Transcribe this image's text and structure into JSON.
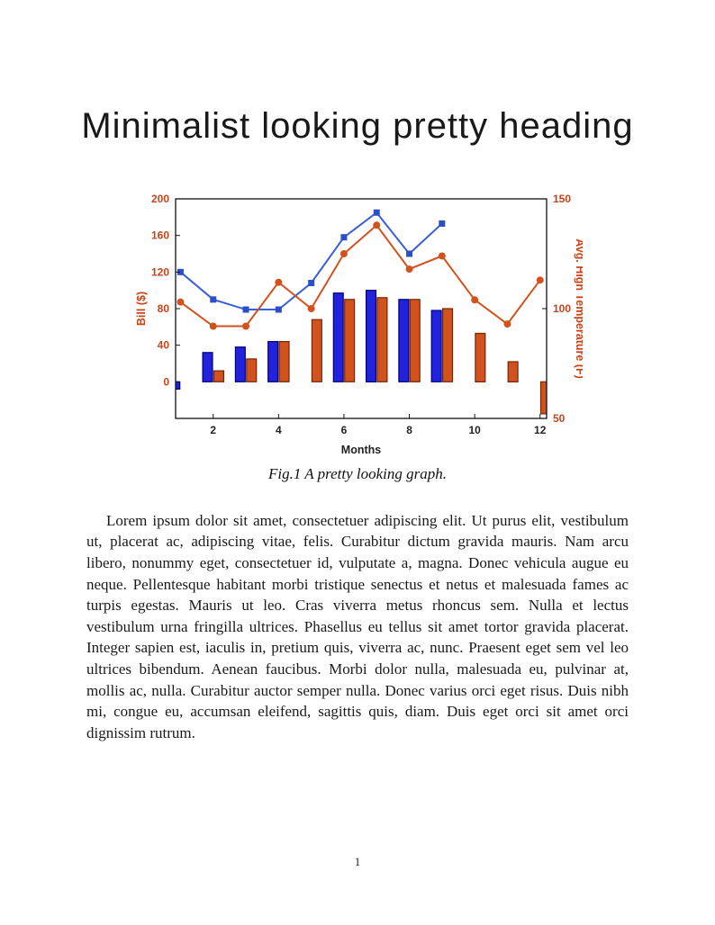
{
  "page": {
    "heading": "Minimalist looking pretty heading",
    "caption": "Fig.1 A pretty looking graph.",
    "body": "Lorem ipsum dolor sit amet, consectetuer adipiscing elit. Ut purus elit, vestibulum ut, placerat ac, adipiscing vitae, felis. Curabitur dictum gravida mauris. Nam arcu libero, nonummy eget, consectetuer id, vulputate a, magna. Donec vehicula augue eu neque. Pellentesque habitant morbi tristique senectus et netus et malesuada fames ac turpis egestas. Mauris ut leo. Cras viverra metus rhoncus sem. Nulla et lectus vestibulum urna fringilla ultrices. Phasellus eu tellus sit amet tortor gravida placerat. Integer sapien est, iaculis in, pretium quis, viverra ac, nunc. Praesent eget sem vel leo ultrices bibendum. Aenean faucibus. Morbi dolor nulla, malesuada eu, pulvinar at, mollis ac, nulla. Curabitur auctor semper nulla. Donec varius orci eget risus. Duis nibh mi, congue eu, accumsan eleifend, sagittis quis, diam. Duis eget orci sit amet orci dignissim rutrum.",
    "page_number": "1"
  },
  "chart_data": {
    "type": "bar+line",
    "x": [
      1,
      2,
      3,
      4,
      5,
      6,
      7,
      8,
      9,
      10,
      11,
      12
    ],
    "xlabel": "Months",
    "x_ticks": [
      2,
      4,
      6,
      8,
      10,
      12
    ],
    "x_tick_color": "#222222",
    "grid": false,
    "legend": "none",
    "left_axis": {
      "label": "Bill ($)",
      "ticks": [
        0,
        40,
        80,
        120,
        160,
        200
      ],
      "range": [
        -40,
        200
      ],
      "color": "#C7441A"
    },
    "right_axis": {
      "label": "Avg. High Temperature (F)",
      "ticks": [
        50,
        100,
        150
      ],
      "range": [
        50,
        150
      ],
      "color": "#C7441A"
    },
    "series": [
      {
        "name": "bill-bars-blue",
        "type": "bar",
        "axis": "left",
        "color": "#2222DD",
        "edge": "#00007A",
        "values": [
          -8,
          32,
          38,
          44,
          0,
          97,
          100,
          90,
          78,
          0,
          0,
          0
        ]
      },
      {
        "name": "bill-bars-orange",
        "type": "bar",
        "axis": "left",
        "color": "#D2521E",
        "edge": "#772605",
        "values": [
          0,
          12,
          25,
          44,
          68,
          90,
          92,
          90,
          80,
          53,
          22,
          -35
        ]
      },
      {
        "name": "bill-line-blue",
        "type": "line",
        "axis": "left",
        "color": "#3A5FD7",
        "marker": "square",
        "marker_color": "#2B4FC8",
        "values": [
          120,
          90,
          79,
          79,
          108,
          158,
          185,
          140,
          173,
          null,
          null,
          null
        ]
      },
      {
        "name": "temp-line-orange",
        "type": "line",
        "axis": "right",
        "color": "#D2521E",
        "marker": "circle",
        "marker_color": "#D2521E",
        "values": [
          103,
          92,
          92,
          112,
          100,
          125,
          138,
          118,
          124,
          104,
          93,
          113
        ]
      }
    ]
  }
}
